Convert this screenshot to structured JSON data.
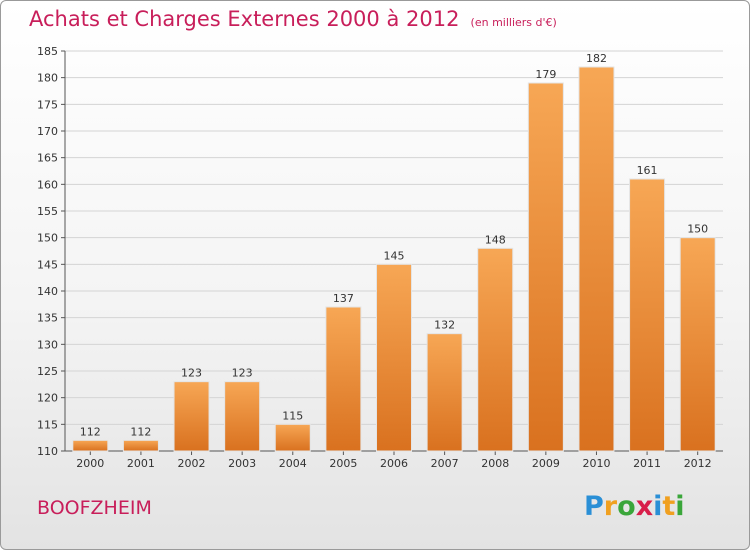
{
  "header": {
    "title": "Achats et Charges Externes 2000 à 2012",
    "subtitle": "(en milliers d'€)"
  },
  "footer": {
    "commune": "BOOFZHEIM",
    "logo_text": "Proxiti",
    "logo_letters": [
      {
        "ch": "P",
        "color": "#2a8fd6"
      },
      {
        "ch": "r",
        "color": "#f0a020"
      },
      {
        "ch": "o",
        "color": "#3aa63a"
      },
      {
        "ch": "x",
        "color": "#d81e4a"
      },
      {
        "ch": "i",
        "color": "#2a8fd6"
      },
      {
        "ch": "t",
        "color": "#f0a020"
      },
      {
        "ch": "i",
        "color": "#3aa63a"
      }
    ]
  },
  "chart_data": {
    "type": "bar",
    "title": "Achats et Charges Externes 2000 à 2012",
    "subtitle": "(en milliers d'€)",
    "categories": [
      "2000",
      "2001",
      "2002",
      "2003",
      "2004",
      "2005",
      "2006",
      "2007",
      "2008",
      "2009",
      "2010",
      "2011",
      "2012"
    ],
    "values": [
      112,
      112,
      123,
      123,
      115,
      137,
      145,
      132,
      148,
      179,
      182,
      161,
      150
    ],
    "ylim": [
      110,
      185
    ],
    "yticks": [
      110,
      115,
      120,
      125,
      130,
      135,
      140,
      145,
      150,
      155,
      160,
      165,
      170,
      175,
      180,
      185
    ],
    "grid": true,
    "bar_color_top": "#f7a755",
    "bar_color_bottom": "#d9711f",
    "xlabel": "",
    "ylabel": ""
  }
}
